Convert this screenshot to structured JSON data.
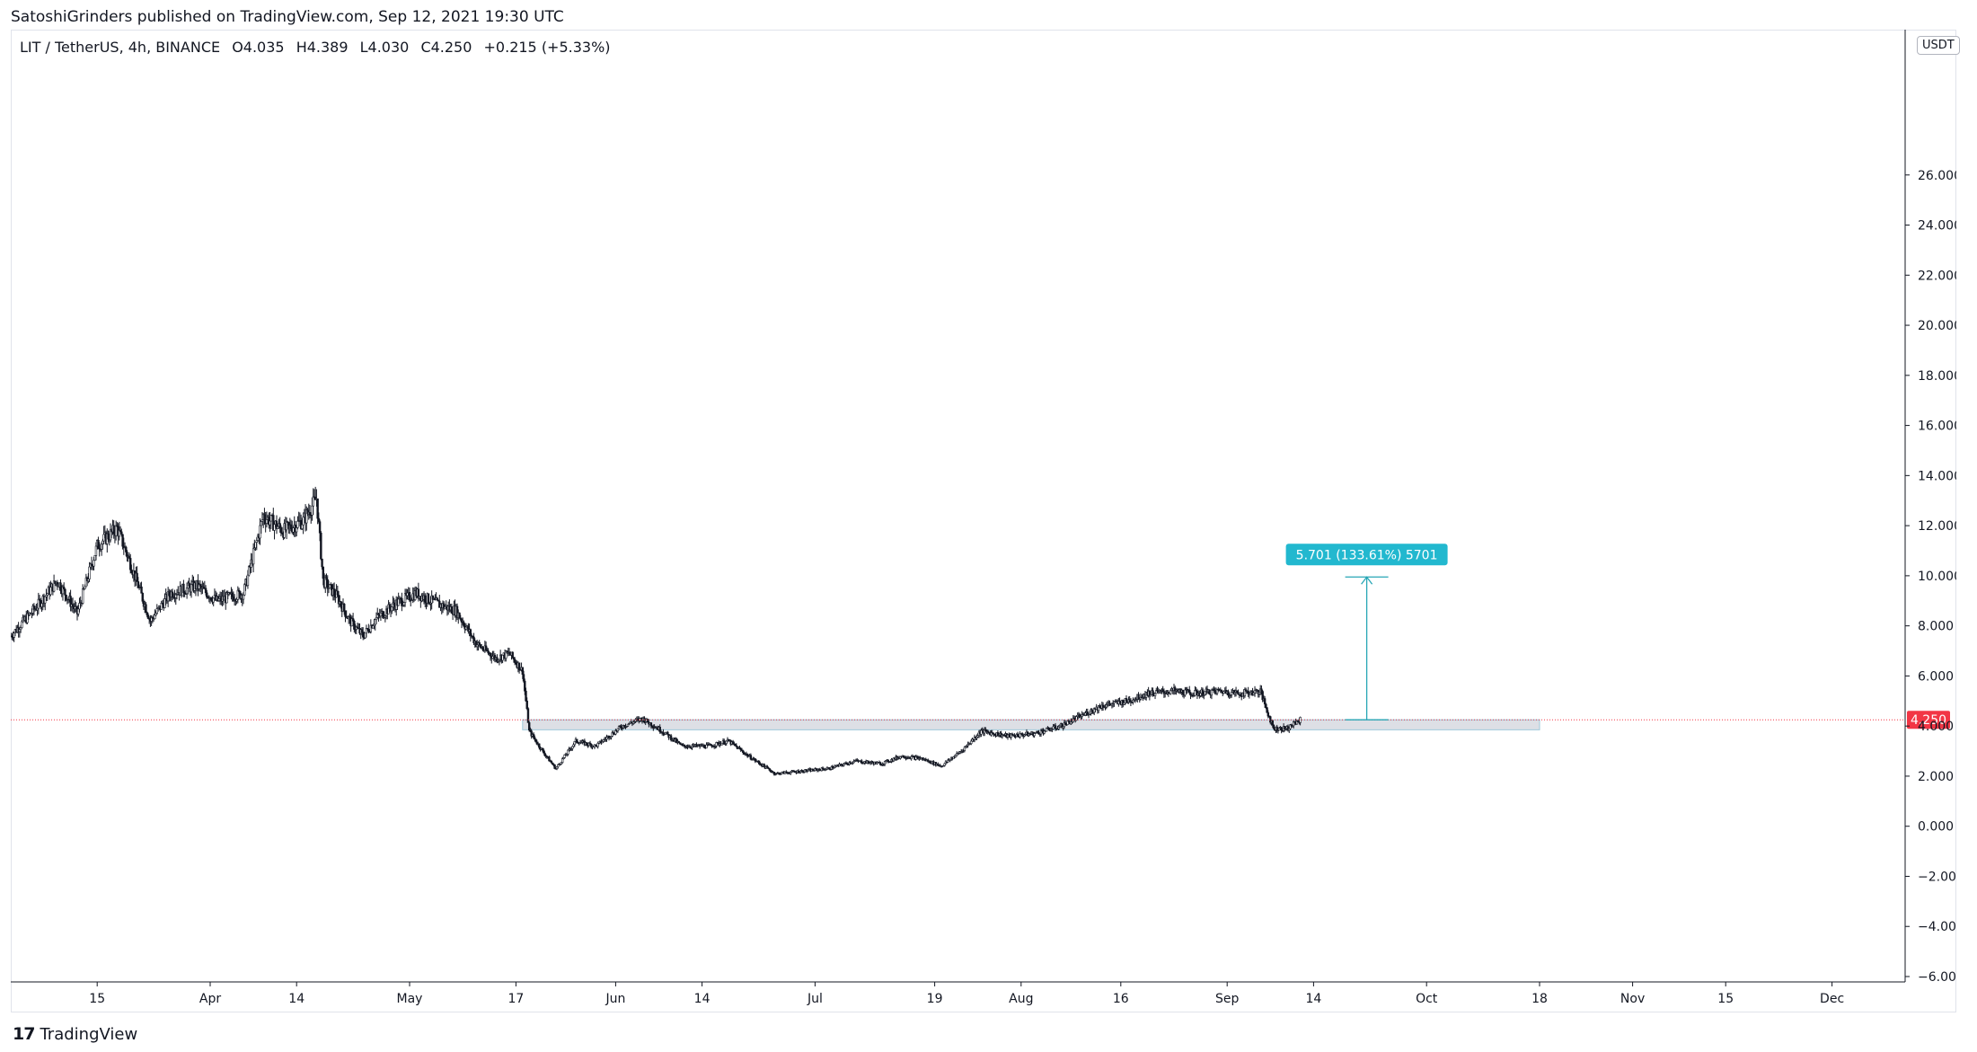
{
  "header": {
    "publisher": "SatoshiGrinders published on TradingView.com, Sep 12, 2021 19:30 UTC"
  },
  "legend": {
    "symbol": "LIT / TetherUS, 4h, BINANCE",
    "open": "O4.035",
    "high": "H4.389",
    "low": "L4.030",
    "close": "C4.250",
    "change": "+0.215 (+5.33%)"
  },
  "currency": "USDT",
  "footer": {
    "brand": "TradingView",
    "logo_mark": "17"
  },
  "colors": {
    "candles": "#131722",
    "price_line": "#f23645",
    "price_label_bg": "#f23645",
    "measure": "#26a6b5",
    "measure_label_bg": "#22b8cf",
    "zone_fill": "#d1d4dc",
    "zone_border": "#9ec8da"
  },
  "chart_data": {
    "type": "candlestick",
    "symbol": "LIT / TetherUS",
    "interval": "4h",
    "exchange": "BINANCE",
    "ylim": [
      -6,
      28
    ],
    "y_ticks": [
      "26.000",
      "24.000",
      "22.000",
      "20.000",
      "18.000",
      "16.000",
      "14.000",
      "12.000",
      "10.000",
      "8.000",
      "6.000",
      "4.000",
      "2.000",
      "0.000",
      "−2.000",
      "−4.000",
      "−6.000"
    ],
    "y_tick_values": [
      26,
      24,
      22,
      20,
      18,
      16,
      14,
      12,
      10,
      8,
      6,
      4,
      2,
      0,
      -2,
      -4,
      -6
    ],
    "x_ticks": [
      "15",
      "Apr",
      "14",
      "May",
      "17",
      "Jun",
      "14",
      "Jul",
      "19",
      "Aug",
      "16",
      "Sep",
      "14",
      "Oct",
      "18",
      "Nov",
      "15",
      "Dec"
    ],
    "x_tick_dates": [
      "2021-03-15",
      "2021-04-01",
      "2021-04-14",
      "2021-05-01",
      "2021-05-17",
      "2021-06-01",
      "2021-06-14",
      "2021-07-01",
      "2021-07-19",
      "2021-08-01",
      "2021-08-16",
      "2021-09-01",
      "2021-09-14",
      "2021-10-01",
      "2021-10-18",
      "2021-11-01",
      "2021-11-15",
      "2021-12-01"
    ],
    "xlim": [
      "2021-03-02",
      "2021-12-12"
    ],
    "price_path": [
      [
        "2021-03-02",
        7.6
      ],
      [
        "2021-03-06",
        8.8
      ],
      [
        "2021-03-09",
        9.8
      ],
      [
        "2021-03-12",
        8.5
      ],
      [
        "2021-03-15",
        11.2
      ],
      [
        "2021-03-18",
        11.9
      ],
      [
        "2021-03-20",
        10.5
      ],
      [
        "2021-03-23",
        8.2
      ],
      [
        "2021-03-26",
        9.3
      ],
      [
        "2021-03-30",
        9.6
      ],
      [
        "2021-04-02",
        9.0
      ],
      [
        "2021-04-06",
        9.3
      ],
      [
        "2021-04-09",
        12.4
      ],
      [
        "2021-04-12",
        11.8
      ],
      [
        "2021-04-15",
        12.2
      ],
      [
        "2021-04-17",
        13.1
      ],
      [
        "2021-04-18",
        9.8
      ],
      [
        "2021-04-20",
        9.2
      ],
      [
        "2021-04-22",
        8.2
      ],
      [
        "2021-04-24",
        7.6
      ],
      [
        "2021-04-26",
        8.3
      ],
      [
        "2021-04-29",
        8.9
      ],
      [
        "2021-05-02",
        9.3
      ],
      [
        "2021-05-05",
        8.9
      ],
      [
        "2021-05-08",
        8.6
      ],
      [
        "2021-05-11",
        7.3
      ],
      [
        "2021-05-14",
        6.7
      ],
      [
        "2021-05-16",
        6.9
      ],
      [
        "2021-05-18",
        6.2
      ],
      [
        "2021-05-19",
        3.8
      ],
      [
        "2021-05-21",
        3.0
      ],
      [
        "2021-05-23",
        2.3
      ],
      [
        "2021-05-26",
        3.4
      ],
      [
        "2021-05-29",
        3.2
      ],
      [
        "2021-06-02",
        4.0
      ],
      [
        "2021-06-05",
        4.3
      ],
      [
        "2021-06-08",
        3.8
      ],
      [
        "2021-06-11",
        3.2
      ],
      [
        "2021-06-15",
        3.2
      ],
      [
        "2021-06-18",
        3.4
      ],
      [
        "2021-06-21",
        2.8
      ],
      [
        "2021-06-25",
        2.1
      ],
      [
        "2021-06-29",
        2.2
      ],
      [
        "2021-07-03",
        2.3
      ],
      [
        "2021-07-07",
        2.6
      ],
      [
        "2021-07-11",
        2.5
      ],
      [
        "2021-07-14",
        2.8
      ],
      [
        "2021-07-17",
        2.7
      ],
      [
        "2021-07-20",
        2.4
      ],
      [
        "2021-07-23",
        3.0
      ],
      [
        "2021-07-26",
        3.8
      ],
      [
        "2021-07-30",
        3.6
      ],
      [
        "2021-08-03",
        3.7
      ],
      [
        "2021-08-07",
        4.0
      ],
      [
        "2021-08-10",
        4.4
      ],
      [
        "2021-08-13",
        4.8
      ],
      [
        "2021-08-17",
        5.0
      ],
      [
        "2021-08-20",
        5.3
      ],
      [
        "2021-08-24",
        5.4
      ],
      [
        "2021-08-27",
        5.3
      ],
      [
        "2021-08-31",
        5.4
      ],
      [
        "2021-09-03",
        5.3
      ],
      [
        "2021-09-06",
        5.4
      ],
      [
        "2021-09-07",
        4.6
      ],
      [
        "2021-09-08",
        3.9
      ],
      [
        "2021-09-10",
        3.9
      ],
      [
        "2021-09-12",
        4.25
      ]
    ],
    "last_price": 4.25,
    "last_price_label": "4.250",
    "support_zone": {
      "from": "2021-05-18",
      "to": "2021-10-18",
      "low": 3.85,
      "high": 4.25
    },
    "measure": {
      "date": "2021-09-22",
      "from": 4.25,
      "to": 9.95,
      "label": "5.701 (133.61%) 5701"
    }
  }
}
